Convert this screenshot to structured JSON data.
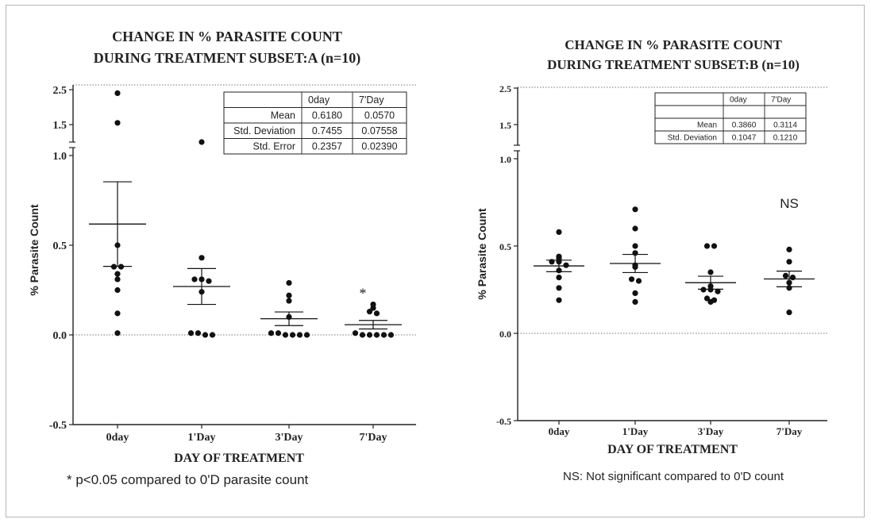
{
  "chart_data": [
    {
      "type": "scatter",
      "title_line1": "CHANGE IN % PARASITE COUNT",
      "title_line2": "DURING TREATMENT SUBSET:A (n=10)",
      "xlabel": "DAY OF TREATMENT",
      "ylabel": "% Parasite Count",
      "categories": [
        "0day",
        "1'Day",
        "3'Day",
        "7'Day"
      ],
      "y_ticks": [
        "-0.5",
        "0.0",
        "0.5",
        "1.0",
        "1.5",
        "2.5"
      ],
      "points": [
        [
          2.4,
          1.55,
          0.5,
          0.38,
          0.38,
          0.34,
          0.31,
          0.25,
          0.12,
          0.01
        ],
        [
          1.2,
          0.43,
          0.31,
          0.31,
          0.3,
          0.24,
          0.01,
          0.01,
          0.0,
          0.0
        ],
        [
          0.29,
          0.22,
          0.19,
          0.1,
          0.01,
          0.01,
          0.0,
          0.0,
          0.0,
          0.0
        ],
        [
          0.17,
          0.15,
          0.13,
          0.12,
          0.01,
          0.0,
          0.0,
          0.0,
          0.0,
          0.0
        ]
      ],
      "mean": [
        0.618,
        0.27,
        0.09,
        0.057
      ],
      "sem": [
        0.2357,
        0.1,
        0.038,
        0.0239
      ],
      "annotations": [
        {
          "category": 3,
          "text": "*"
        }
      ],
      "table": {
        "headers": [
          "",
          "0day",
          "7'Day"
        ],
        "rows": [
          [
            "Mean",
            "0.6180",
            "0.0570"
          ],
          [
            "Std. Deviation",
            "0.7455",
            "0.07558"
          ],
          [
            "Std. Error",
            "0.2357",
            "0.02390"
          ]
        ]
      },
      "footnote": "* p<0.05 compared to 0'D parasite count"
    },
    {
      "type": "scatter",
      "title_line1": "CHANGE IN % PARASITE COUNT",
      "title_line2": "DURING TREATMENT SUBSET:B (n=10)",
      "xlabel": "DAY OF TREATMENT",
      "ylabel": "% Parasite Count",
      "categories": [
        "0day",
        "1'Day",
        "3'Day",
        "7'Day"
      ],
      "y_ticks": [
        "-0.5",
        "0.0",
        "0.5",
        "1.0",
        "1.5",
        "2.5"
      ],
      "points": [
        [
          0.58,
          0.44,
          0.43,
          0.41,
          0.41,
          0.39,
          0.36,
          0.32,
          0.26,
          0.19
        ],
        [
          0.71,
          0.6,
          0.5,
          0.46,
          0.39,
          0.38,
          0.31,
          0.3,
          0.23,
          0.18
        ],
        [
          0.5,
          0.5,
          0.35,
          0.27,
          0.25,
          0.25,
          0.24,
          0.2,
          0.19,
          0.18
        ],
        [
          0.48,
          0.41,
          0.33,
          0.32,
          0.29,
          0.26,
          0.12
        ]
      ],
      "mean": [
        0.386,
        0.4,
        0.29,
        0.3114
      ],
      "sem": [
        0.033,
        0.052,
        0.037,
        0.045
      ],
      "annotations": [
        {
          "category": 3,
          "text": "NS"
        }
      ],
      "table": {
        "headers": [
          "",
          "0day",
          "7'Day"
        ],
        "rows": [
          [
            "",
            "",
            ""
          ],
          [
            "Mean",
            "0.3860",
            "0.3114"
          ],
          [
            "Std. Deviation",
            "0.1047",
            "0.1210"
          ]
        ]
      },
      "footnote": "NS: Not significant compared to 0'D count"
    }
  ]
}
